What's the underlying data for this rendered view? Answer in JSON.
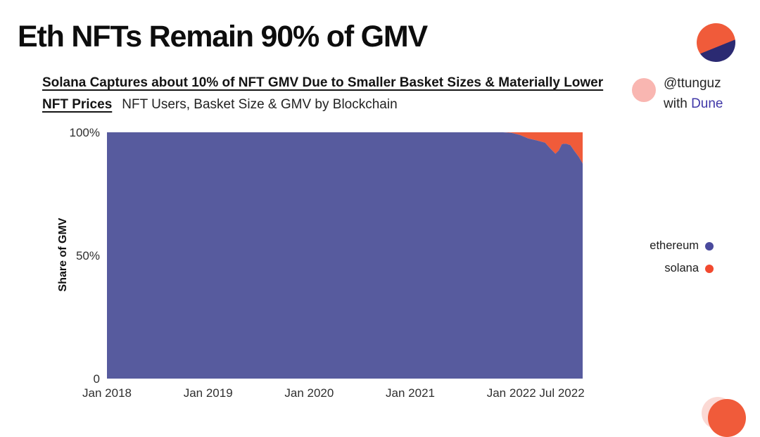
{
  "header": {
    "title": "Eth NFTs Remain 90% of GMV",
    "subtitle_bold_line1": "Solana Captures about 10% of NFT GMV Due to Smaller Basket Sizes & Materially Lower",
    "subtitle_bold_line2": "NFT Prices",
    "subtitle_rest": "NFT Users, Basket Size & GMV by Blockchain"
  },
  "attribution": {
    "handle": "@ttunguz",
    "with_text": "with ",
    "brand": "Dune"
  },
  "legend": [
    {
      "label": "ethereum",
      "color": "#4a4a9d"
    },
    {
      "label": "solana",
      "color": "#f2492f"
    }
  ],
  "colors": {
    "ethereum_area": "#575b9e",
    "solana_area": "#f05b3a",
    "logo_navy": "#2b2a72",
    "logo_orange": "#f05b3a",
    "attribution_pink": "#f9b6b1",
    "dune_brand": "#4038a8",
    "title_text": "#0d0d0d"
  },
  "chart_data": {
    "type": "area",
    "stacked": true,
    "title": "NFT Users, Basket Size & GMV by Blockchain",
    "xlabel": "",
    "ylabel": "Share of GMV",
    "ylim": [
      0,
      100
    ],
    "grid": false,
    "legend_position": "right",
    "x_range": [
      "2018-01",
      "2022-09-15"
    ],
    "x_ticks": [
      {
        "label": "Jan 2018",
        "date": "2018-01"
      },
      {
        "label": "Jan 2019",
        "date": "2019-01"
      },
      {
        "label": "Jan 2020",
        "date": "2020-01"
      },
      {
        "label": "Jan 2021",
        "date": "2021-01"
      },
      {
        "label": "Jan 2022",
        "date": "2022-01"
      },
      {
        "label": "Jul 2022",
        "date": "2022-07"
      }
    ],
    "y_ticks": [
      {
        "label": "100%",
        "value": 100
      },
      {
        "label": "50%",
        "value": 50
      },
      {
        "label": "0",
        "value": 0
      }
    ],
    "series": [
      {
        "name": "ethereum",
        "color": "#575b9e",
        "points": [
          [
            "2018-01",
            100
          ],
          [
            "2019-01",
            100
          ],
          [
            "2020-01",
            100
          ],
          [
            "2021-01",
            100
          ],
          [
            "2021-12",
            100
          ],
          [
            "2022-01",
            99.8
          ],
          [
            "2022-02",
            98.9
          ],
          [
            "2022-03",
            97.5
          ],
          [
            "2022-04",
            96.7
          ],
          [
            "2022-05",
            95.8
          ],
          [
            "2022-05-15",
            94.0
          ],
          [
            "2022-06-08",
            91.3
          ],
          [
            "2022-06-20",
            92.6
          ],
          [
            "2022-07-01",
            95.2
          ],
          [
            "2022-07-15",
            95.4
          ],
          [
            "2022-08-01",
            94.8
          ],
          [
            "2022-08-15",
            92.5
          ],
          [
            "2022-09-01",
            90.0
          ],
          [
            "2022-09-15",
            87.3
          ]
        ]
      },
      {
        "name": "solana",
        "color": "#f05b3a",
        "points": [
          [
            "2018-01",
            0
          ],
          [
            "2019-01",
            0
          ],
          [
            "2020-01",
            0
          ],
          [
            "2021-01",
            0
          ],
          [
            "2021-12",
            0
          ],
          [
            "2022-01",
            0.2
          ],
          [
            "2022-02",
            1.1
          ],
          [
            "2022-03",
            2.5
          ],
          [
            "2022-04",
            3.3
          ],
          [
            "2022-05",
            4.2
          ],
          [
            "2022-05-15",
            6.0
          ],
          [
            "2022-06-08",
            8.7
          ],
          [
            "2022-06-20",
            7.4
          ],
          [
            "2022-07-01",
            4.8
          ],
          [
            "2022-07-15",
            4.6
          ],
          [
            "2022-08-01",
            5.2
          ],
          [
            "2022-08-15",
            7.5
          ],
          [
            "2022-09-01",
            10.0
          ],
          [
            "2022-09-15",
            12.7
          ]
        ]
      }
    ]
  }
}
